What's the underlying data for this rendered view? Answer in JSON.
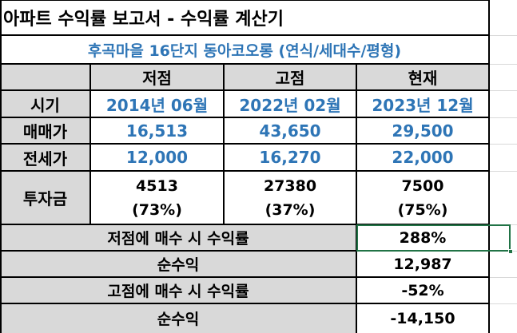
{
  "title": "아파트 수익률 보고서 - 수익률 계산기",
  "subtitle": "후곡마을 16단지 동아코오롱 (연식/세대수/평형)",
  "headers": {
    "low": "저점",
    "high": "고점",
    "current": "현재"
  },
  "rows": {
    "period": {
      "label": "시기",
      "low": "2014년 06월",
      "high": "2022년 02월",
      "current": "2023년 12월"
    },
    "sale": {
      "label": "매매가",
      "low": "16,513",
      "high": "43,650",
      "current": "29,500"
    },
    "jeonse": {
      "label": "전세가",
      "low": "12,000",
      "high": "16,270",
      "current": "22,000"
    },
    "invest": {
      "label": "투자금",
      "low": "4513",
      "low_pct": "(73%)",
      "high": "27380",
      "high_pct": "(37%)",
      "current": "7500",
      "current_pct": "(75%)"
    }
  },
  "results": [
    {
      "label": "저점에 매수 시 수익률",
      "value": "288%"
    },
    {
      "label": "순수익",
      "value": "12,987"
    },
    {
      "label": "고점에 매수 시 수익률",
      "value": "-52%"
    },
    {
      "label": "순수익",
      "value": "-14,150"
    }
  ],
  "colors": {
    "accent": "#2e75b6",
    "header_bg": "#d9d9d9",
    "selection": "#217346"
  }
}
